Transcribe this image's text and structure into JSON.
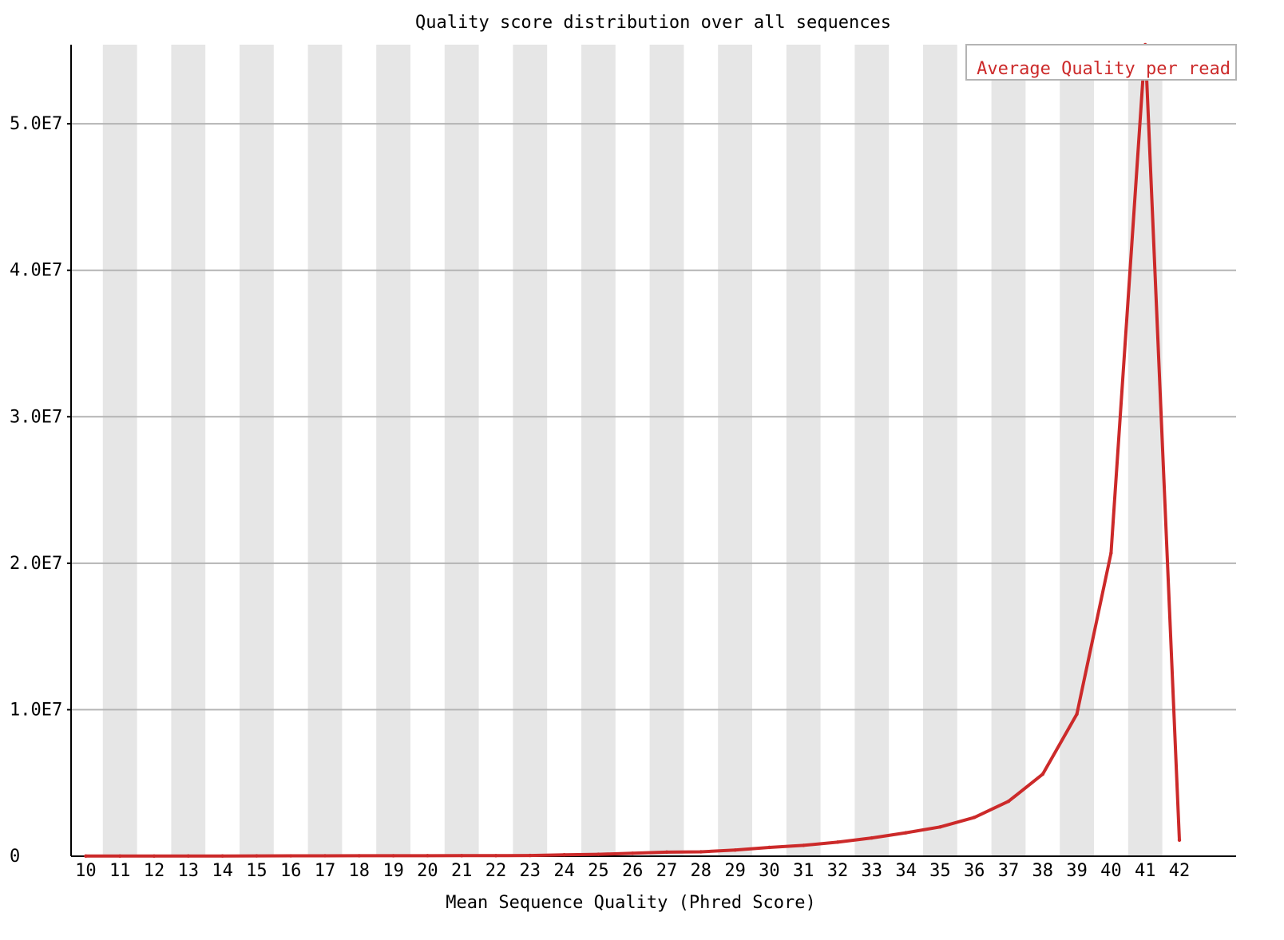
{
  "colors": {
    "background": "#ffffff",
    "stripe": "#e6e6e6",
    "grid": "#b4b4b4",
    "axis": "#000000",
    "series": "#cc2a2a",
    "legend_border": "#b4b4b4"
  },
  "chart_data": {
    "type": "line",
    "title": "Quality score distribution over all sequences",
    "xlabel": "Mean Sequence Quality (Phred Score)",
    "ylabel": "",
    "x": [
      10,
      11,
      12,
      13,
      14,
      15,
      16,
      17,
      18,
      19,
      20,
      21,
      22,
      23,
      24,
      25,
      26,
      27,
      28,
      29,
      30,
      31,
      32,
      33,
      34,
      35,
      36,
      37,
      38,
      39,
      40,
      41,
      42
    ],
    "x_tick_labels": [
      "10",
      "11",
      "12",
      "13",
      "14",
      "15",
      "16",
      "17",
      "18",
      "19",
      "20",
      "21",
      "22",
      "23",
      "24",
      "25",
      "26",
      "27",
      "28",
      "29",
      "30",
      "31",
      "32",
      "33",
      "34",
      "35",
      "36",
      "37",
      "38",
      "39",
      "40",
      "41",
      "42"
    ],
    "y_ticks": [
      0,
      10000000,
      20000000,
      30000000,
      40000000,
      50000000
    ],
    "y_tick_labels": [
      "0",
      "1.0E7",
      "2.0E7",
      "3.0E7",
      "4.0E7",
      "5.0E7"
    ],
    "ylim": [
      0,
      55400000
    ],
    "grid": true,
    "alternating_column_stripes": true,
    "legend_position": "top-right",
    "series": [
      {
        "name": "Average Quality per read",
        "values": [
          10000,
          12000,
          12000,
          15000,
          18000,
          22000,
          25000,
          28000,
          30000,
          32000,
          35000,
          38000,
          40000,
          50000,
          100000,
          130000,
          200000,
          280000,
          300000,
          420000,
          600000,
          740000,
          960000,
          1250000,
          1600000,
          2000000,
          2650000,
          3750000,
          5600000,
          9700000,
          20700000,
          55400000,
          1100000
        ]
      }
    ]
  }
}
